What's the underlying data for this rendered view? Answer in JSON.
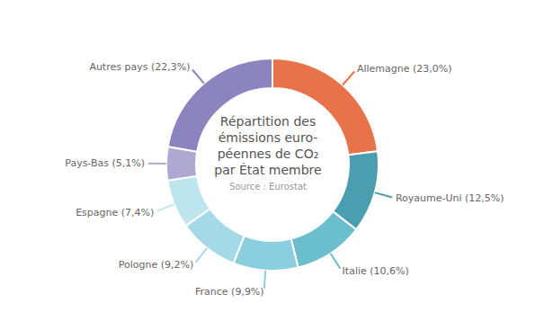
{
  "chart_data": {
    "type": "pie",
    "title": [
      "Répartition des",
      "émissions euro-",
      "péennes de CO₂",
      "par État membre"
    ],
    "annotations": [
      "Source : Eurostat"
    ],
    "categories": [
      "Allemagne",
      "Royaume-Uni",
      "Italie",
      "France",
      "Pologne",
      "Espagne",
      "Pays-Bas",
      "Autres pays"
    ],
    "values": [
      23.0,
      12.5,
      10.6,
      9.9,
      9.2,
      7.4,
      5.1,
      22.3
    ],
    "value_labels": [
      "Allemagne (23,0%)",
      "Royaume-Uni (12,5%)",
      "Italie (10,6%)",
      "France (9,9%)",
      "Pologne (9,2%)",
      "Espagne (7,4%)",
      "Pays-Bas (5,1%)",
      "Autres pays (22,3%)"
    ],
    "colors": [
      "#E8724A",
      "#4A9EAF",
      "#6BBFCC",
      "#8BCFDE",
      "#A5D9E8",
      "#BDE5EE",
      "#AFA8D0",
      "#8B84BE"
    ],
    "data_labels": true
  }
}
